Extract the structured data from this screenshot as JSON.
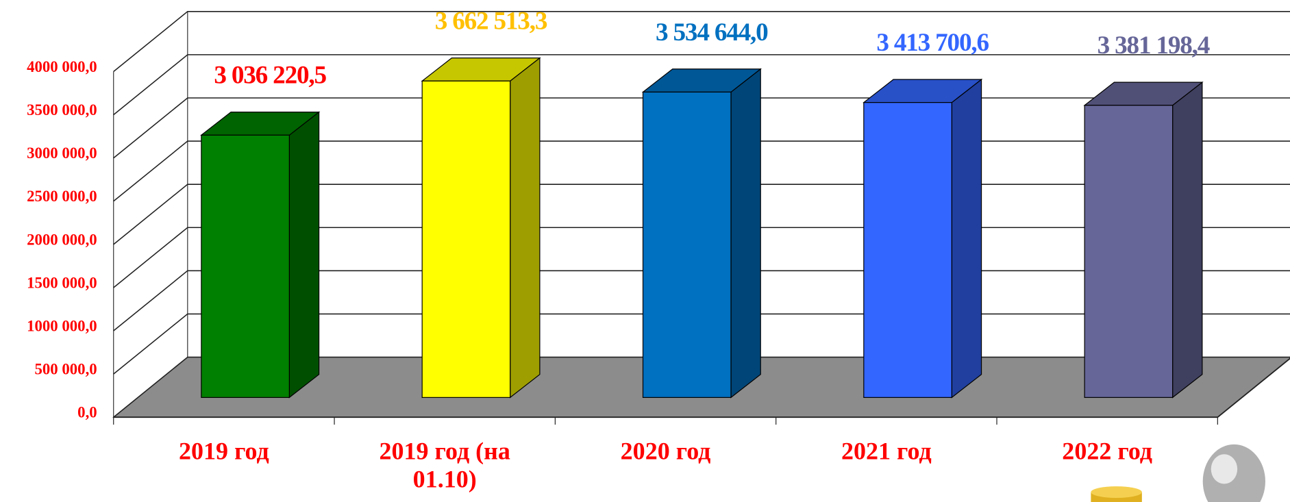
{
  "chart_data": {
    "type": "bar3d",
    "categories": [
      "2019 год",
      "2019 год (на 01.10)",
      "2020 год",
      "2021 год",
      "2022 год"
    ],
    "values": [
      3036220.5,
      3662513.3,
      3534644.0,
      3413700.6,
      3381198.4
    ],
    "value_labels": [
      "3 036 220,5",
      "3 662 513,3",
      "3 534 644,0",
      "3 413 700,6",
      "3 381 198,4"
    ],
    "colors": [
      "#008000",
      "#ffff00",
      "#0070c0",
      "#3366ff",
      "#666699"
    ],
    "label_colors": [
      "#ff0000",
      "#ffc000",
      "#0070c0",
      "#3366ff",
      "#666699"
    ],
    "ylim": [
      0,
      4000000
    ],
    "yticks": [
      {
        "value": 0,
        "label": "0,0"
      },
      {
        "value": 500000,
        "label": "500 000,0"
      },
      {
        "value": 1000000,
        "label": "1000 000,0"
      },
      {
        "value": 1500000,
        "label": "1500 000,0"
      },
      {
        "value": 2000000,
        "label": "2000 000,0"
      },
      {
        "value": 2500000,
        "label": "2500 000,0"
      },
      {
        "value": 3000000,
        "label": "3000 000,0"
      },
      {
        "value": 3500000,
        "label": "3500 000,0"
      },
      {
        "value": 4000000,
        "label": "4000 000,0"
      }
    ],
    "grid": true
  }
}
